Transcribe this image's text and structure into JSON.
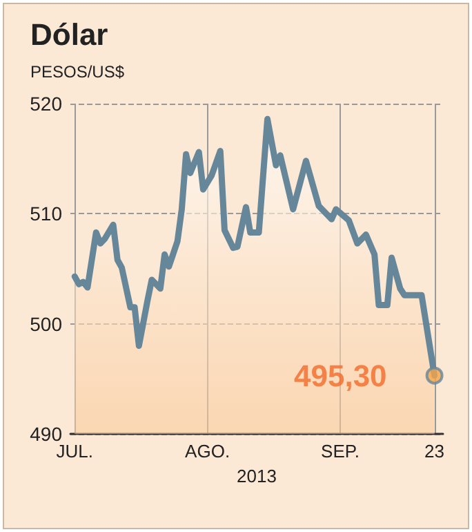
{
  "chart_data": {
    "type": "area",
    "title": "Dólar",
    "ylabel": "PESOS/US$",
    "xlabel": "2013",
    "x": [
      "2013-07-01",
      "2013-07-02",
      "2013-07-03",
      "2013-07-04",
      "2013-07-06",
      "2013-07-07",
      "2013-07-08",
      "2013-07-10",
      "2013-07-11",
      "2013-07-12",
      "2013-07-14",
      "2013-07-15",
      "2013-07-16",
      "2013-07-18",
      "2013-07-19",
      "2013-07-21",
      "2013-07-22",
      "2013-07-23",
      "2013-07-25",
      "2013-07-26",
      "2013-07-27",
      "2013-07-28",
      "2013-07-30",
      "2013-07-31",
      "2013-08-02",
      "2013-08-04",
      "2013-08-05",
      "2013-08-07",
      "2013-08-08",
      "2013-08-10",
      "2013-08-11",
      "2013-08-13",
      "2013-08-15",
      "2013-08-17",
      "2013-08-18",
      "2013-08-21",
      "2013-08-24",
      "2013-08-27",
      "2013-08-30",
      "2013-08-31",
      "2013-09-03",
      "2013-09-05",
      "2013-09-07",
      "2013-09-09",
      "2013-09-10",
      "2013-09-12",
      "2013-09-13",
      "2013-09-15",
      "2013-09-16",
      "2013-09-20",
      "2013-09-23"
    ],
    "series": [
      {
        "color": "#66869a",
        "values": [
          504.3,
          503.6,
          503.8,
          503.3,
          508.3,
          507.3,
          507.7,
          509.0,
          505.8,
          505.1,
          501.5,
          501.5,
          498.0,
          502.1,
          504.0,
          503.2,
          506.3,
          505.2,
          507.5,
          510.4,
          515.4,
          513.7,
          515.6,
          512.2,
          513.5,
          515.7,
          508.5,
          506.9,
          507.0,
          510.6,
          508.3,
          508.3,
          518.6,
          514.4,
          515.3,
          510.4,
          514.8,
          510.7,
          509.5,
          510.4,
          509.4,
          507.3,
          508.1,
          506.3,
          501.7,
          501.7,
          506.0,
          503.2,
          502.6,
          502.6,
          495.3
        ]
      }
    ],
    "xlim": [
      "2013-06-30",
      "2013-09-25"
    ],
    "xticks": [
      {
        "value": "2013-07-01",
        "label": "JUL."
      },
      {
        "value": "2013-08-01",
        "label": "AGO."
      },
      {
        "value": "2013-09-01",
        "label": "SEP."
      },
      {
        "value": "2013-09-23",
        "label": "23"
      }
    ],
    "ylim": [
      490,
      520
    ],
    "yticks": [
      490,
      500,
      510,
      520
    ],
    "grid": true,
    "marker": "none",
    "line_style": "solid",
    "annotations": [
      {
        "text": "495,30",
        "x": "2013-09-23",
        "y": 495.3
      }
    ]
  }
}
